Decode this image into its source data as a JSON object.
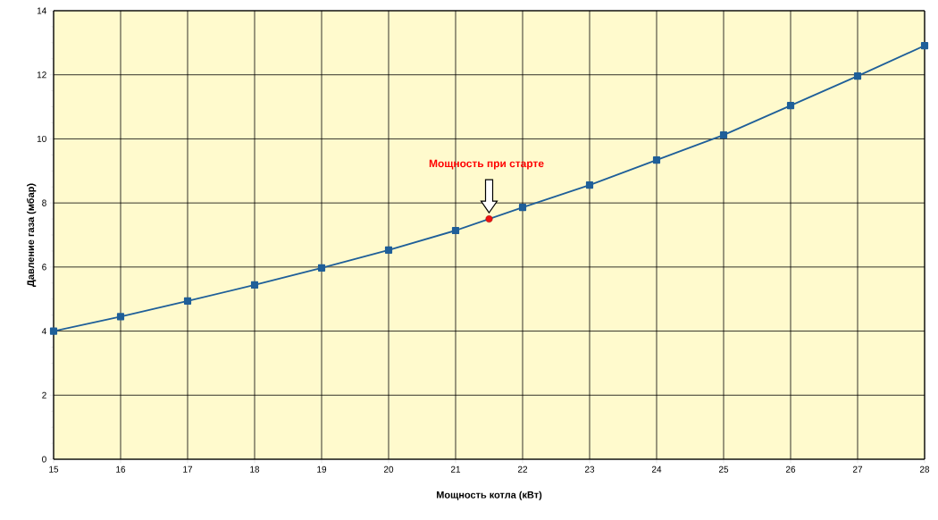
{
  "chart_data": {
    "type": "line",
    "xlabel": "Мощность котла (кВт)",
    "ylabel": "Давление газа (мбар)",
    "x": [
      15,
      16,
      17,
      18,
      19,
      20,
      21,
      22,
      23,
      24,
      25,
      26,
      27,
      28
    ],
    "series": [
      {
        "color": "#1f5f99",
        "values": [
          4.0,
          4.45,
          4.94,
          5.44,
          5.97,
          6.53,
          7.14,
          7.86,
          8.56,
          9.34,
          10.12,
          11.04,
          11.96,
          12.91
        ],
        "marker": "square"
      },
      {
        "type": "scatter",
        "color": "#ee1111",
        "x": [
          21.5
        ],
        "values": [
          7.5
        ],
        "marker": "circle"
      }
    ],
    "annotations": [
      "Мощность при старте"
    ],
    "xlim": [
      15,
      28
    ],
    "xticks": [
      15,
      16,
      17,
      18,
      19,
      20,
      21,
      22,
      23,
      24,
      25,
      26,
      27,
      28
    ],
    "ylim": [
      0,
      14
    ],
    "yticks": [
      0,
      2,
      4,
      6,
      8,
      10,
      12,
      14
    ],
    "grid": true,
    "line_style": "solid"
  }
}
